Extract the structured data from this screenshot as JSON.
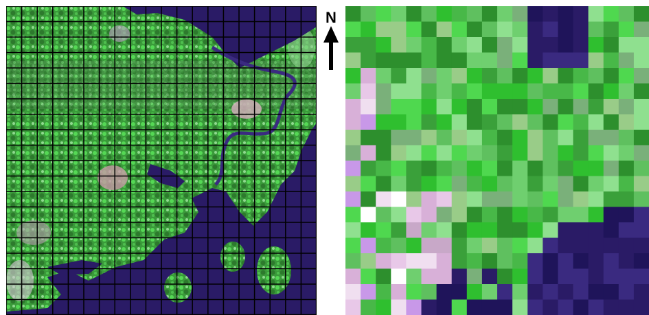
{
  "north_label": "N",
  "colors": {
    "water": "#2a1b66",
    "vegetation": "#2fbf2f",
    "grid": "#000000"
  },
  "left_panel": {
    "grid_rows": 20,
    "grid_cols": 20
  },
  "right_panel": {
    "pixel_rows": 20,
    "pixel_cols": 20
  }
}
